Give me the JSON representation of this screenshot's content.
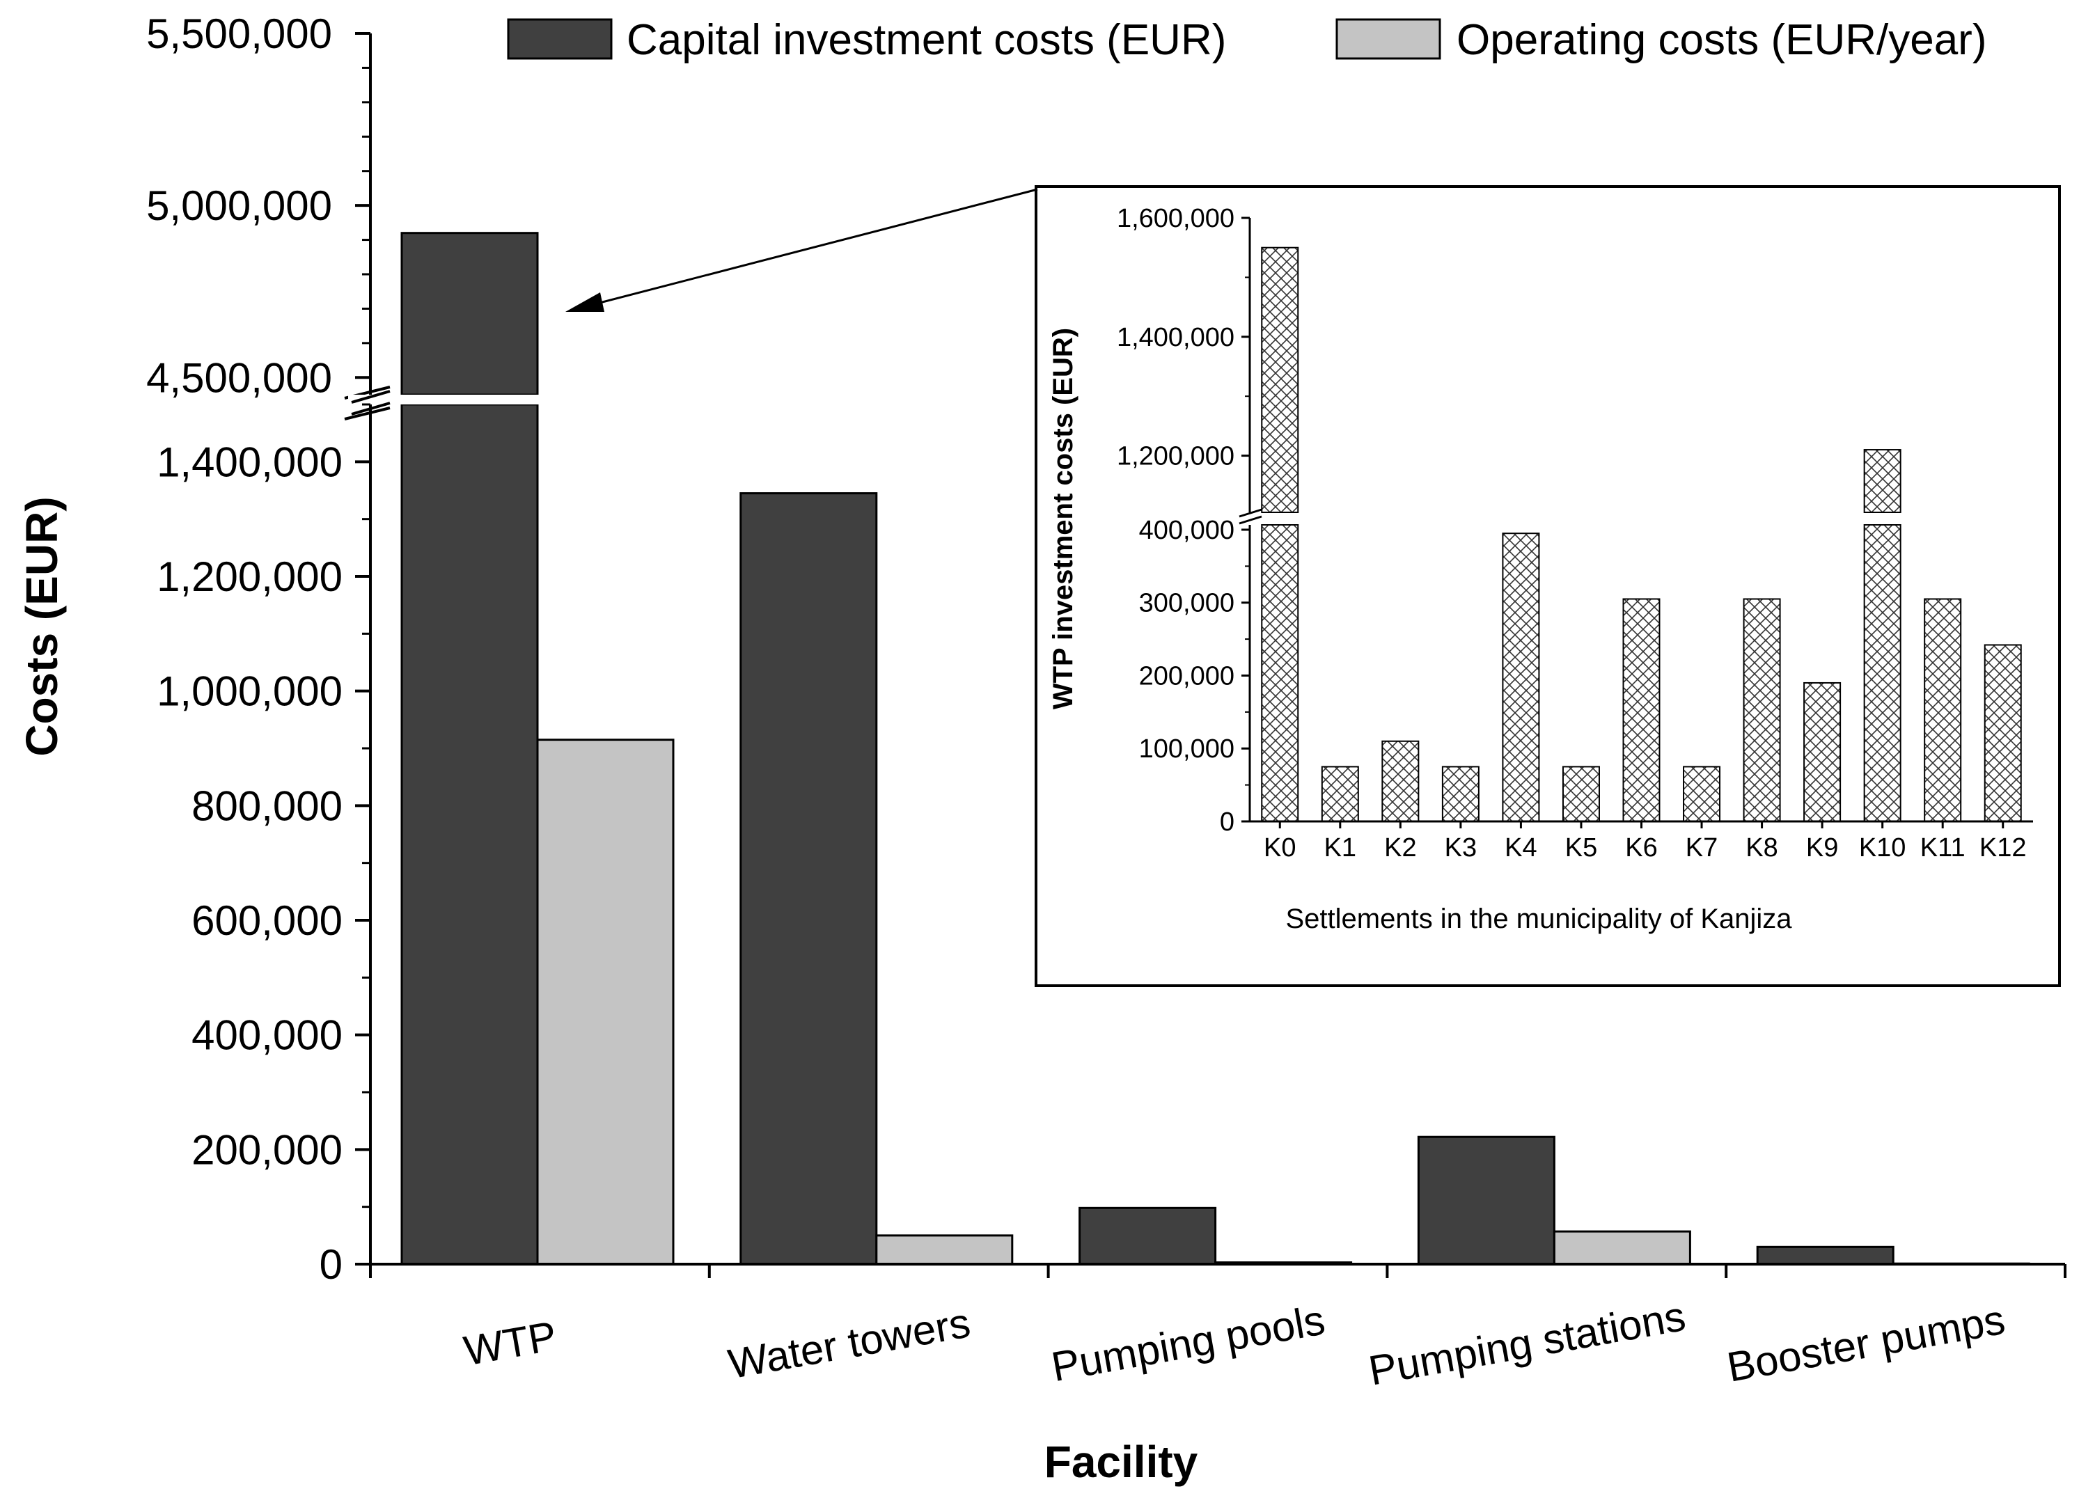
{
  "colors": {
    "capital": "#404040",
    "operating": "#c4c4c4",
    "axis": "#000000",
    "inset_fill": "#ffffff",
    "inset_hatch": "#333333"
  },
  "chart_data": [
    {
      "type": "bar",
      "title": "",
      "xlabel": "Facility",
      "ylabel": "Costs (EUR)",
      "categories": [
        "WTP",
        "Water towers",
        "Pumping pools",
        "Pumping stations",
        "Booster pumps"
      ],
      "series": [
        {
          "name": "Capital investment costs (EUR)",
          "values": [
            4920000,
            1345000,
            98000,
            222000,
            30000
          ]
        },
        {
          "name": "Operating costs (EUR/year)",
          "values": [
            915000,
            50000,
            3000,
            57000,
            1000
          ]
        }
      ],
      "y_axis_break": {
        "lower_range": [
          0,
          1500000
        ],
        "upper_range": [
          4450000,
          5500000
        ]
      },
      "yticks_lower": [
        0,
        200000,
        400000,
        600000,
        800000,
        1000000,
        1200000,
        1400000
      ],
      "yticks_lower_labels": [
        "0",
        "200,000",
        "400,000",
        "600,000",
        "800,000",
        "1,000,000",
        "1,200,000",
        "1,400,000"
      ],
      "yticks_upper": [
        4500000,
        5000000,
        5500000
      ],
      "yticks_upper_labels": [
        "4,500,000",
        "5,000,000",
        "5,500,000"
      ],
      "legend_position": "top-right"
    },
    {
      "type": "bar",
      "title": "",
      "xlabel": "Settlements in the municipality of Kanjiza",
      "ylabel": "WTP investment costs (EUR)",
      "categories": [
        "K0",
        "K1",
        "K2",
        "K3",
        "K4",
        "K5",
        "K6",
        "K7",
        "K8",
        "K9",
        "K10",
        "K11",
        "K12"
      ],
      "values": [
        1550000,
        75000,
        110000,
        75000,
        395000,
        75000,
        305000,
        75000,
        305000,
        190000,
        1210000,
        305000,
        242000
      ],
      "y_axis_break": {
        "lower_range": [
          0,
          420000
        ],
        "upper_range": [
          1100000,
          1600000
        ]
      },
      "yticks_lower": [
        0,
        100000,
        200000,
        300000,
        400000
      ],
      "yticks_lower_labels": [
        "0",
        "100,000",
        "200,000",
        "300,000",
        "400,000"
      ],
      "yticks_upper": [
        1200000,
        1400000,
        1600000
      ],
      "yticks_upper_labels": [
        "1,200,000",
        "1,400,000",
        "1,600,000"
      ],
      "annotation": "arrow from inset to WTP capital bar",
      "placement": "inset, upper-right"
    }
  ]
}
